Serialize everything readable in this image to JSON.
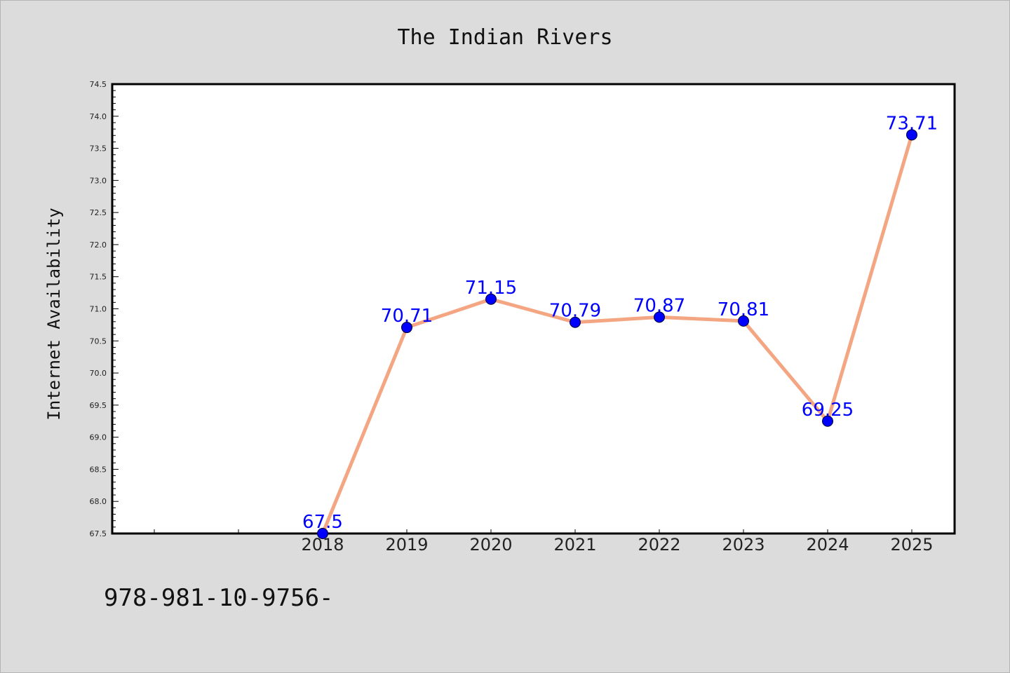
{
  "chart_data": {
    "type": "line",
    "title": "The Indian Rivers",
    "xlabel": "",
    "ylabel": "Internet Availability",
    "categories": [
      "2018",
      "2019",
      "2020",
      "2021",
      "2022",
      "2023",
      "2024",
      "2025"
    ],
    "series": [
      {
        "values": [
          67.5,
          70.71,
          71.15,
          70.79,
          70.87,
          70.81,
          69.25,
          73.71
        ],
        "labels": [
          "67.5",
          "70.71",
          "71.15",
          "70.79",
          "70.87",
          "70.81",
          "69.25",
          "73.71"
        ],
        "line_color": "#f4a582",
        "marker_color": "#0000ff"
      }
    ],
    "ylim": [
      67.5,
      74.5
    ],
    "yticks": [
      "67.5",
      "68.0",
      "68.5",
      "69.0",
      "69.5",
      "70.0",
      "70.5",
      "71.0",
      "71.5",
      "72.0",
      "72.5",
      "73.0",
      "73.5",
      "74.0",
      "74.5"
    ],
    "grid": false,
    "legend": "none"
  },
  "footer_text": "978-981-10-9756-",
  "colors": {
    "background": "#dcdcdc",
    "plot_background": "#ffffff",
    "label_color": "#0000ff"
  }
}
